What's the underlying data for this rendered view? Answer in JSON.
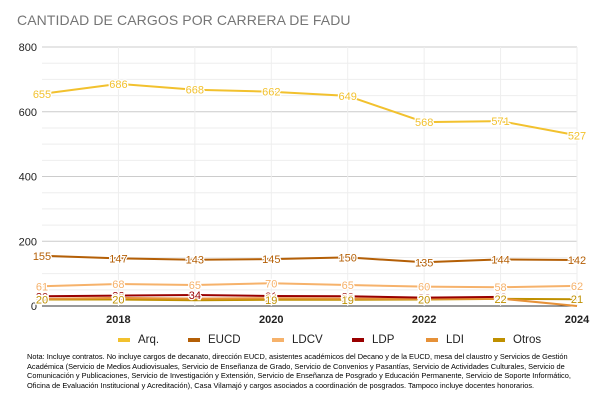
{
  "chart_data": {
    "type": "line",
    "title": "CANTIDAD DE CARGOS POR CARRERA DE FADU",
    "x": [
      2017,
      2018,
      2019,
      2020,
      2021,
      2022,
      2023,
      2024
    ],
    "xticks": [
      2018,
      2020,
      2022,
      2024
    ],
    "xlim": [
      2017,
      2024
    ],
    "ylim": [
      0,
      800
    ],
    "yticks": [
      0,
      200,
      400,
      600,
      800
    ],
    "grid": true,
    "legend_position": "bottom",
    "series": [
      {
        "name": "Arq.",
        "color": "#f2c12e",
        "values": [
          655,
          686,
          668,
          662,
          649,
          568,
          571,
          527
        ],
        "labels": [
          "655",
          "686",
          "668",
          "662",
          "649",
          "568",
          "571",
          "527"
        ]
      },
      {
        "name": "EUCD",
        "color": "#b45f06",
        "values": [
          155,
          147,
          143,
          145,
          150,
          135,
          144,
          142
        ],
        "labels": [
          "155",
          "147",
          "143",
          "145",
          "150",
          "135",
          "144",
          "142"
        ]
      },
      {
        "name": "LDCV",
        "color": "#f6b26b",
        "values": [
          61,
          68,
          65,
          70,
          65,
          60,
          58,
          62
        ],
        "labels": [
          "61",
          "68",
          "65",
          "70",
          "65",
          "60",
          "58",
          "62"
        ]
      },
      {
        "name": "LDP",
        "color": "#990000",
        "values": [
          30,
          32,
          34,
          31,
          30,
          26,
          28,
          null
        ],
        "labels": [
          "30",
          "32",
          "34",
          "31",
          "30",
          "26",
          "28",
          ""
        ]
      },
      {
        "name": "LDI",
        "color": "#e69138",
        "values": [
          22,
          25,
          23,
          24,
          23,
          22,
          23,
          0
        ],
        "labels": [
          "22",
          "25",
          "",
          "24",
          "23",
          "22",
          "23",
          ""
        ]
      },
      {
        "name": "Otros",
        "color": "#bf9000",
        "values": [
          20,
          20,
          18,
          19,
          19,
          20,
          22,
          21
        ],
        "labels": [
          "20",
          "20",
          "",
          "19",
          "19",
          "20",
          "22",
          "21"
        ]
      }
    ],
    "note": "Nota: Incluye contratos. No incluye cargos de decanato, dirección EUCD, asistentes académicos del Decano y de la EUCD, mesa del claustro y Servicios de Gestión Académica (Servicio de Medios Audiovisuales, Servicio de Enseñanza de Grado, Servicio de Convenios y Pasantías, Servicio de Actividades Culturales, Servicio de Comunicación y Publicaciones, Servicio de Investigación y Extensión, Servicio de Enseñanza de Posgrado y Educación Permanente, Servicio de Soporte Informático, Oficina de Evaluación Institucional y Acreditación), Casa Vilamajó y cargos asociados a coordinación de posgrados. Tampoco incluye docentes honorarios."
  }
}
